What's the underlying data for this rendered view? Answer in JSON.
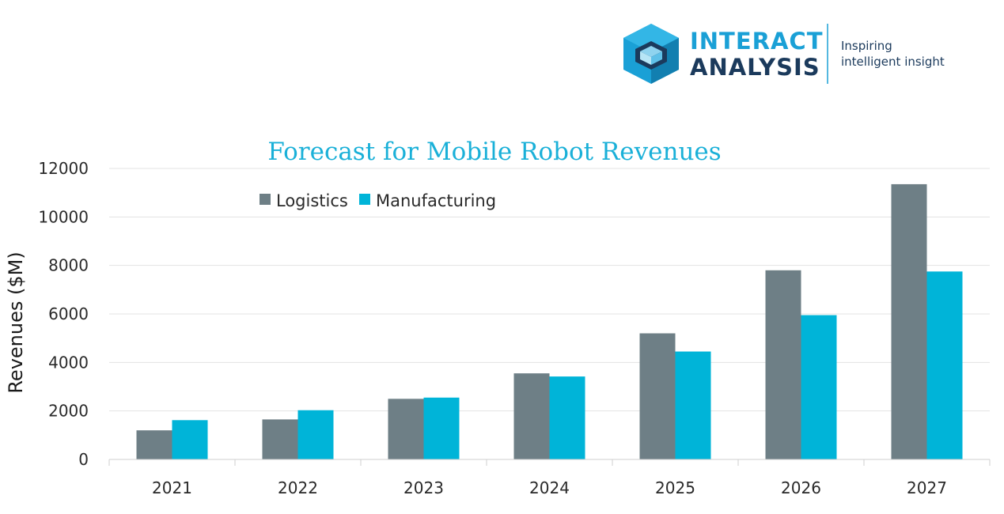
{
  "branding": {
    "name_line1": "INTERACT",
    "name_line2": "ANALYSIS",
    "tagline_line1": "Inspiring",
    "tagline_line2": "intelligent insight",
    "colors": {
      "primary": "#1aa0d6",
      "dark": "#1b3a5c",
      "light": "#8fd3ef"
    }
  },
  "chart_data": {
    "type": "bar",
    "title": "Forecast for Mobile Robot Revenues",
    "xlabel": "",
    "ylabel": "Revenues ($M)",
    "ylim": [
      0,
      12000
    ],
    "yticks": [
      0,
      2000,
      4000,
      6000,
      8000,
      10000,
      12000
    ],
    "grid": true,
    "legend_position": "top-left",
    "categories": [
      "2021",
      "2022",
      "2023",
      "2024",
      "2025",
      "2026",
      "2027"
    ],
    "series": [
      {
        "name": "Logistics",
        "color": "#6e7f86",
        "values": [
          1200,
          1650,
          2500,
          3550,
          5200,
          7800,
          11350
        ]
      },
      {
        "name": "Manufacturing",
        "color": "#00b4d8",
        "values": [
          1620,
          2030,
          2550,
          3420,
          4450,
          5950,
          7750
        ]
      }
    ],
    "title_color": "#1ab0d8"
  }
}
